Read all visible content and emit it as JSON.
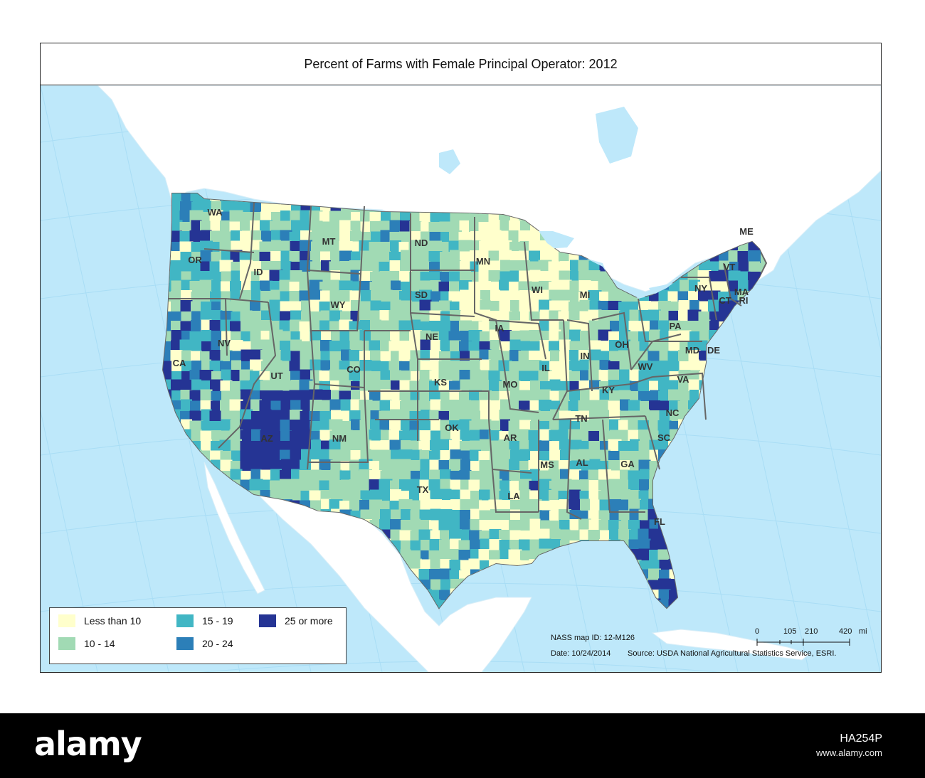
{
  "title": "Percent of Farms with Female Principal Operator:  2012",
  "legend": [
    {
      "label": "Less than 10",
      "color": "#FFFFCC"
    },
    {
      "label": "10 - 14",
      "color": "#A1DAB4"
    },
    {
      "label": "15 - 19",
      "color": "#41B6C4"
    },
    {
      "label": "20 - 24",
      "color": "#2C7FB8"
    },
    {
      "label": "25 or more",
      "color": "#253494"
    }
  ],
  "colors": {
    "ocean": "#BEE8FA",
    "land_outside": "#FFFFFF",
    "state_border": "#666666",
    "graticule": "#A9DDF5"
  },
  "state_labels": [
    "WA",
    "OR",
    "CA",
    "ID",
    "NV",
    "MT",
    "WY",
    "UT",
    "AZ",
    "CO",
    "NM",
    "ND",
    "SD",
    "NE",
    "KS",
    "OK",
    "TX",
    "MN",
    "IA",
    "MO",
    "AR",
    "LA",
    "WI",
    "IL",
    "MI",
    "IN",
    "OH",
    "KY",
    "TN",
    "MS",
    "AL",
    "GA",
    "FL",
    "SC",
    "NC",
    "VA",
    "WV",
    "PA",
    "NY",
    "MD",
    "DE",
    "ME",
    "VT",
    "MA",
    "CT",
    "RI"
  ],
  "credits": {
    "map_id": "NASS map ID: 12-M126",
    "date": "Date: 10/24/2014",
    "source": "Source: USDA National Agricultural Statistics Service, ESRI."
  },
  "scale": {
    "ticks": [
      "0",
      "105",
      "210",
      "420"
    ],
    "unit": "mi"
  },
  "footer": {
    "logo": "alamy",
    "image_id": "HA254P",
    "url": "www.alamy.com"
  }
}
